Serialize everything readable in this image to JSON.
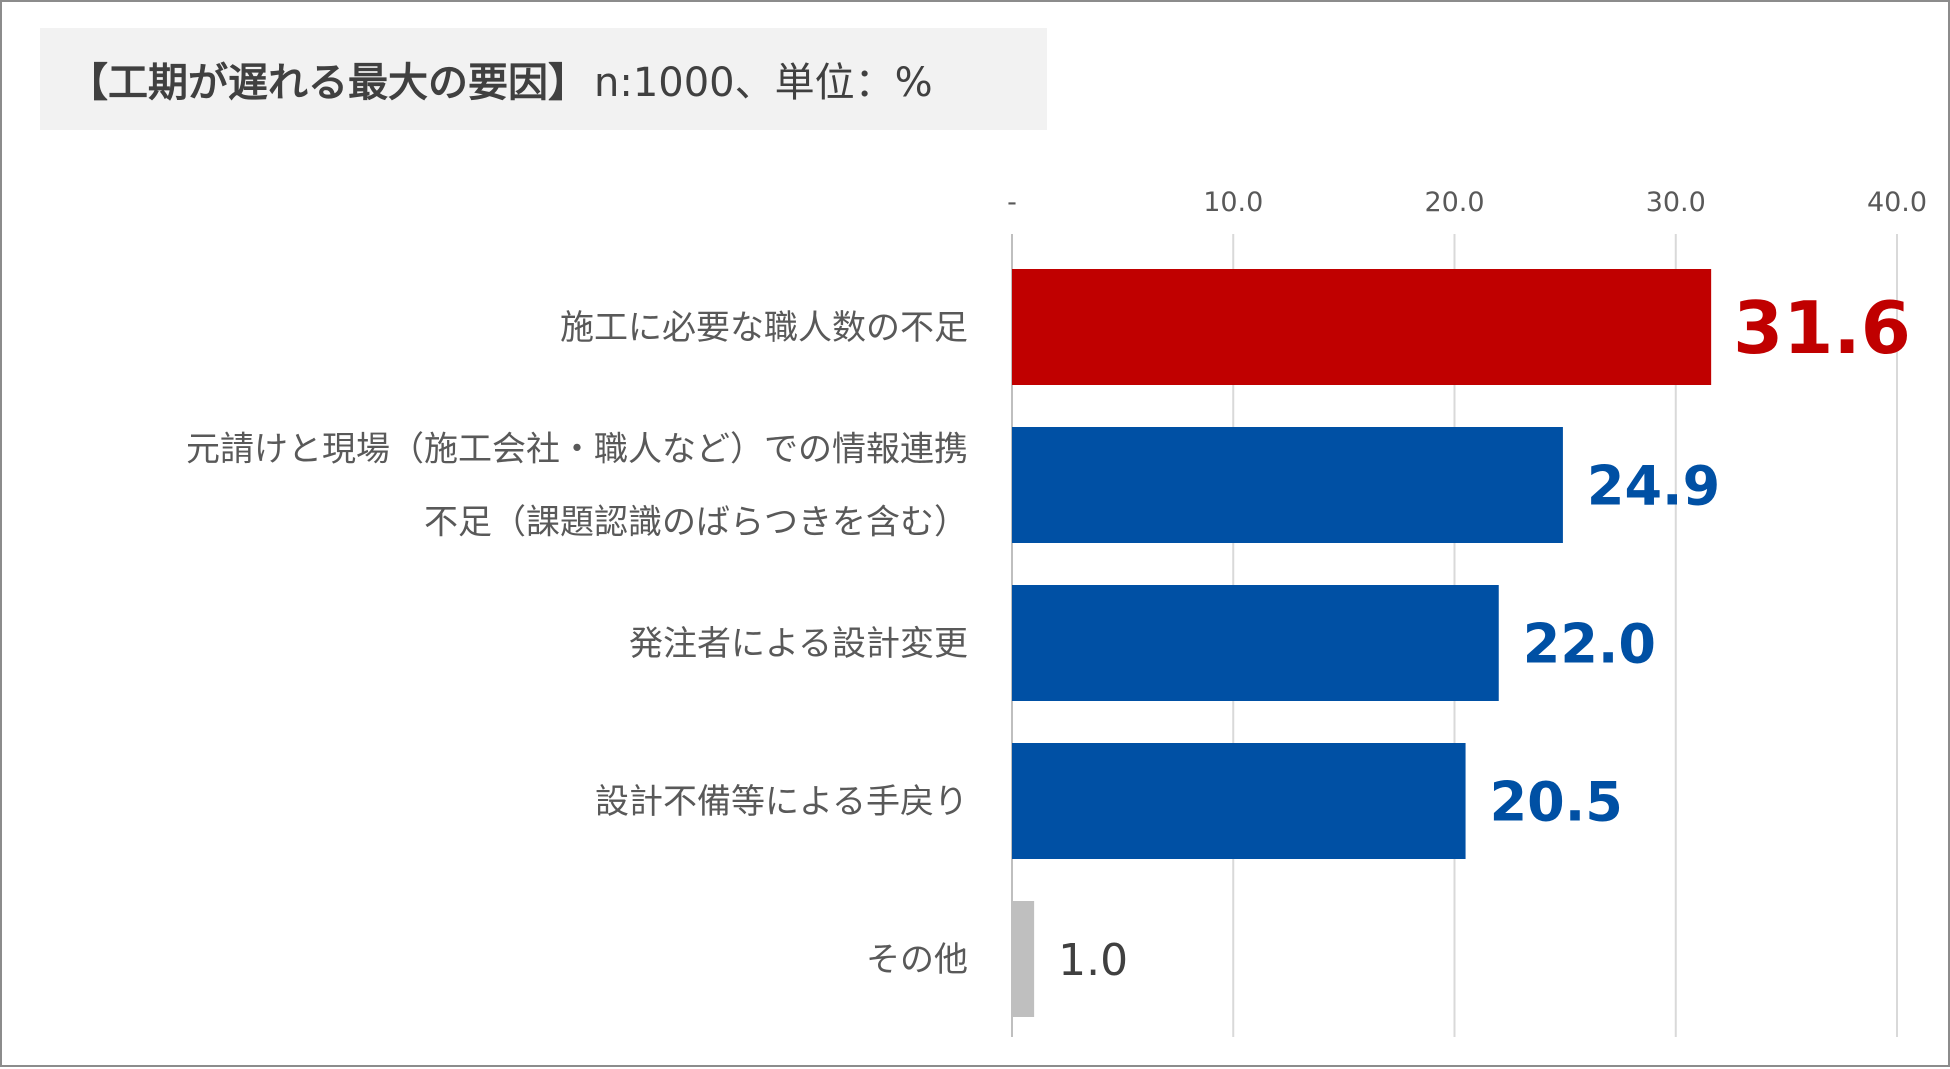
{
  "chart_data": {
    "type": "bar",
    "orientation": "horizontal",
    "title": "【工期が遅れる最大の要因】",
    "subtitle": "n:1000、単位：%",
    "categories": [
      [
        "施工に必要な職人数の不足"
      ],
      [
        "元請けと現場（施工会社・職人など）での情報連携",
        "不足（課題認識のばらつきを含む）"
      ],
      [
        "発注者による設計変更"
      ],
      [
        "設計不備等による手戻り"
      ],
      [
        "その他"
      ]
    ],
    "values": [
      31.6,
      24.9,
      22.0,
      20.5,
      1.0
    ],
    "value_labels": [
      "31.6",
      "24.9",
      "22.0",
      "20.5",
      "1.0"
    ],
    "bar_colors": [
      "#c00000",
      "#0050a4",
      "#0050a4",
      "#0050a4",
      "#bfbfbf"
    ],
    "label_colors": [
      "#c00000",
      "#0050a4",
      "#0050a4",
      "#0050a4",
      "#404040"
    ],
    "label_bold": [
      true,
      true,
      true,
      true,
      false
    ],
    "xlim": [
      0,
      40
    ],
    "xticks": [
      0,
      10,
      20,
      30,
      40
    ],
    "xtick_labels": [
      "-",
      "10.0",
      "20.0",
      "30.0",
      "40.0"
    ],
    "axis_position": "top",
    "grid": true,
    "gridline_color": "#d9d9d9"
  }
}
